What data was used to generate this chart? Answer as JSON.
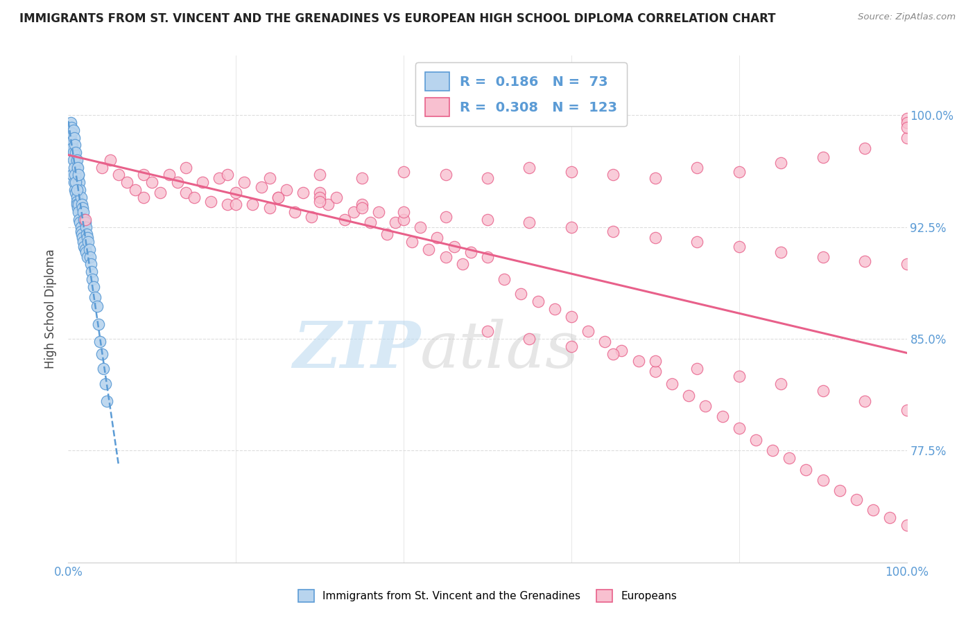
{
  "title": "IMMIGRANTS FROM ST. VINCENT AND THE GRENADINES VS EUROPEAN HIGH SCHOOL DIPLOMA CORRELATION CHART",
  "source": "Source: ZipAtlas.com",
  "ylabel": "High School Diploma",
  "ytick_values": [
    0.775,
    0.85,
    0.925,
    1.0
  ],
  "ytick_labels": [
    "77.5%",
    "85.0%",
    "92.5%",
    "100.0%"
  ],
  "xlim": [
    0.0,
    1.0
  ],
  "ylim": [
    0.7,
    1.04
  ],
  "legend_blue_R": "0.186",
  "legend_blue_N": "73",
  "legend_pink_R": "0.308",
  "legend_pink_N": "123",
  "blue_face_color": "#b8d4ee",
  "blue_edge_color": "#5b9bd5",
  "pink_face_color": "#f8c0d0",
  "pink_edge_color": "#e8608a",
  "blue_line_color": "#5b9bd5",
  "pink_line_color": "#e8608a",
  "grid_color": "#dddddd",
  "watermark_color": "#d0e8f8",
  "blue_scatter_x": [
    0.005,
    0.005,
    0.007,
    0.007,
    0.008,
    0.008,
    0.009,
    0.009,
    0.01,
    0.01,
    0.01,
    0.01,
    0.011,
    0.011,
    0.012,
    0.012,
    0.012,
    0.013,
    0.013,
    0.014,
    0.014,
    0.015,
    0.015,
    0.015,
    0.016,
    0.016,
    0.017,
    0.017,
    0.018,
    0.018,
    0.019,
    0.019,
    0.02,
    0.02,
    0.021,
    0.021,
    0.022,
    0.023,
    0.023,
    0.024,
    0.025,
    0.026,
    0.027,
    0.028,
    0.029,
    0.03,
    0.032,
    0.034,
    0.036,
    0.038,
    0.04,
    0.042,
    0.044,
    0.046,
    0.003,
    0.003,
    0.004,
    0.004,
    0.004,
    0.005,
    0.006,
    0.006,
    0.006,
    0.007,
    0.007,
    0.008,
    0.008,
    0.009,
    0.009,
    0.01,
    0.01,
    0.011,
    0.012
  ],
  "blue_scatter_y": [
    0.98,
    0.96,
    0.975,
    0.955,
    0.97,
    0.95,
    0.968,
    0.948,
    0.965,
    0.945,
    0.942,
    0.94,
    0.958,
    0.938,
    0.96,
    0.94,
    0.935,
    0.955,
    0.93,
    0.95,
    0.928,
    0.945,
    0.925,
    0.922,
    0.94,
    0.92,
    0.938,
    0.918,
    0.935,
    0.915,
    0.93,
    0.912,
    0.928,
    0.91,
    0.925,
    0.908,
    0.92,
    0.918,
    0.905,
    0.915,
    0.91,
    0.905,
    0.9,
    0.895,
    0.89,
    0.885,
    0.878,
    0.872,
    0.86,
    0.848,
    0.84,
    0.83,
    0.82,
    0.808,
    0.995,
    0.985,
    0.992,
    0.982,
    0.988,
    0.978,
    0.99,
    0.975,
    0.97,
    0.985,
    0.965,
    0.98,
    0.96,
    0.975,
    0.955,
    0.97,
    0.95,
    0.965,
    0.96
  ],
  "pink_scatter_x": [
    0.02,
    0.04,
    0.05,
    0.06,
    0.07,
    0.08,
    0.09,
    0.09,
    0.1,
    0.11,
    0.12,
    0.13,
    0.14,
    0.14,
    0.15,
    0.16,
    0.17,
    0.18,
    0.19,
    0.19,
    0.2,
    0.21,
    0.22,
    0.23,
    0.24,
    0.24,
    0.25,
    0.26,
    0.27,
    0.28,
    0.29,
    0.3,
    0.3,
    0.31,
    0.32,
    0.33,
    0.34,
    0.35,
    0.36,
    0.37,
    0.38,
    0.39,
    0.4,
    0.41,
    0.42,
    0.43,
    0.44,
    0.45,
    0.46,
    0.47,
    0.48,
    0.5,
    0.52,
    0.54,
    0.56,
    0.58,
    0.6,
    0.62,
    0.64,
    0.66,
    0.68,
    0.7,
    0.72,
    0.74,
    0.76,
    0.78,
    0.8,
    0.82,
    0.84,
    0.86,
    0.88,
    0.9,
    0.92,
    0.94,
    0.96,
    0.98,
    1.0,
    0.3,
    0.35,
    0.4,
    0.45,
    0.5,
    0.55,
    0.6,
    0.65,
    0.7,
    0.75,
    0.8,
    0.85,
    0.9,
    0.95,
    1.0,
    0.2,
    0.25,
    0.3,
    0.35,
    0.4,
    0.45,
    0.5,
    0.55,
    0.6,
    0.65,
    0.7,
    0.75,
    0.8,
    0.85,
    0.9,
    0.95,
    1.0,
    0.5,
    0.55,
    0.6,
    0.65,
    0.7,
    0.75,
    0.8,
    0.85,
    0.9,
    0.95,
    1.0,
    1.0,
    1.0,
    1.0
  ],
  "pink_scatter_y": [
    0.93,
    0.965,
    0.97,
    0.96,
    0.955,
    0.95,
    0.96,
    0.945,
    0.955,
    0.948,
    0.96,
    0.955,
    0.948,
    0.965,
    0.945,
    0.955,
    0.942,
    0.958,
    0.94,
    0.96,
    0.948,
    0.955,
    0.94,
    0.952,
    0.938,
    0.958,
    0.945,
    0.95,
    0.935,
    0.948,
    0.932,
    0.948,
    0.945,
    0.94,
    0.945,
    0.93,
    0.935,
    0.94,
    0.928,
    0.935,
    0.92,
    0.928,
    0.93,
    0.915,
    0.925,
    0.91,
    0.918,
    0.905,
    0.912,
    0.9,
    0.908,
    0.905,
    0.89,
    0.88,
    0.875,
    0.87,
    0.865,
    0.855,
    0.848,
    0.842,
    0.835,
    0.828,
    0.82,
    0.812,
    0.805,
    0.798,
    0.79,
    0.782,
    0.775,
    0.77,
    0.762,
    0.755,
    0.748,
    0.742,
    0.735,
    0.73,
    0.725,
    0.96,
    0.958,
    0.962,
    0.96,
    0.958,
    0.965,
    0.962,
    0.96,
    0.958,
    0.965,
    0.962,
    0.968,
    0.972,
    0.978,
    0.985,
    0.94,
    0.945,
    0.942,
    0.938,
    0.935,
    0.932,
    0.93,
    0.928,
    0.925,
    0.922,
    0.918,
    0.915,
    0.912,
    0.908,
    0.905,
    0.902,
    0.9,
    0.855,
    0.85,
    0.845,
    0.84,
    0.835,
    0.83,
    0.825,
    0.82,
    0.815,
    0.808,
    0.802,
    0.998,
    0.995,
    0.992
  ]
}
